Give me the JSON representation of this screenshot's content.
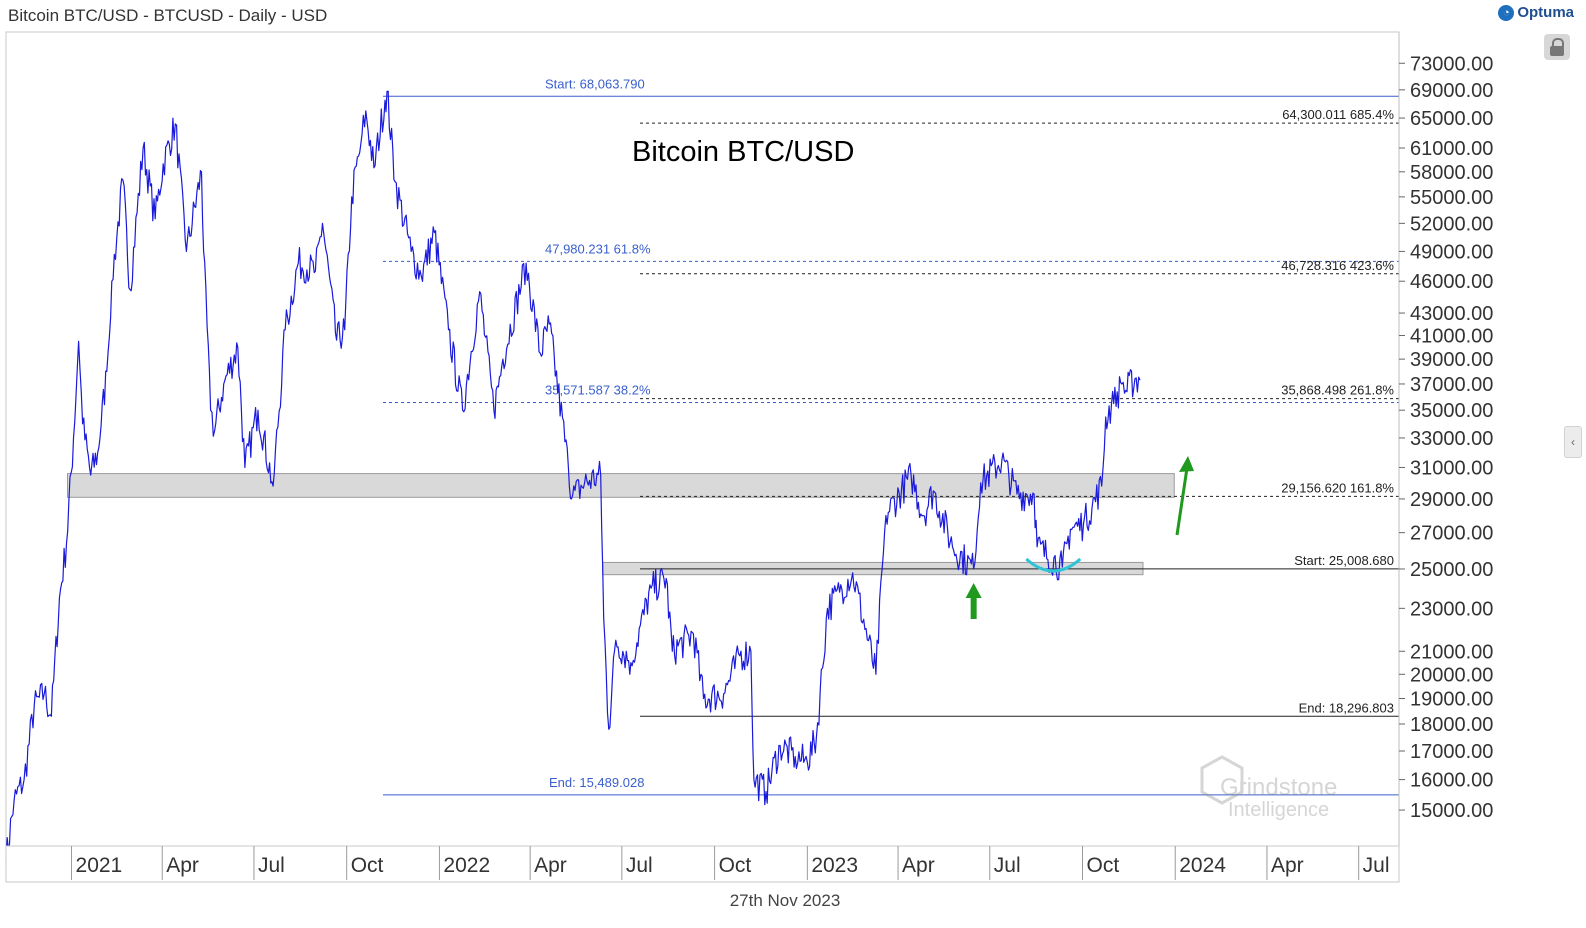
{
  "header": {
    "title": "Bitcoin BTC/USD - BTCUSD - Daily - USD",
    "brand": "Optuma"
  },
  "footer": {
    "date": "27th Nov 2023"
  },
  "watermark": {
    "line1": "Grindstone",
    "line2": "Intelligence"
  },
  "colors": {
    "price": "#1a1adb",
    "fib_left": "#3a5fcd",
    "fib_right": "#222222",
    "zone_fill": "#d9d9d9",
    "cup": "#2ec4d8",
    "arrow": "#1f9a1f"
  },
  "chart_data": {
    "type": "line",
    "title": "Bitcoin BTC/USD",
    "xlabel": "",
    "ylabel": "USD",
    "scale": "log",
    "ylim": [
      13900,
      78000
    ],
    "xlim": [
      "2020-10-28",
      "2024-08-10"
    ],
    "x_ticks": [
      {
        "date": "2021-01-01",
        "label": "2021"
      },
      {
        "date": "2021-04-01",
        "label": "Apr"
      },
      {
        "date": "2021-07-01",
        "label": "Jul"
      },
      {
        "date": "2021-10-01",
        "label": "Oct"
      },
      {
        "date": "2022-01-01",
        "label": "2022"
      },
      {
        "date": "2022-04-01",
        "label": "Apr"
      },
      {
        "date": "2022-07-01",
        "label": "Jul"
      },
      {
        "date": "2022-10-01",
        "label": "Oct"
      },
      {
        "date": "2023-01-01",
        "label": "2023"
      },
      {
        "date": "2023-04-01",
        "label": "Apr"
      },
      {
        "date": "2023-07-01",
        "label": "Jul"
      },
      {
        "date": "2023-10-01",
        "label": "Oct"
      },
      {
        "date": "2024-01-01",
        "label": "2024"
      },
      {
        "date": "2024-04-01",
        "label": "Apr"
      },
      {
        "date": "2024-07-01",
        "label": "Jul"
      }
    ],
    "y_ticks": [
      15000,
      16000,
      17000,
      18000,
      19000,
      20000,
      21000,
      23000,
      25000,
      27000,
      29000,
      31000,
      33000,
      35000,
      37000,
      39000,
      41000,
      43000,
      46000,
      49000,
      52000,
      55000,
      58000,
      61000,
      65000,
      69000,
      73000
    ],
    "y_tick_labels": [
      "15000.00",
      "16000.00",
      "17000.00",
      "18000.00",
      "19000.00",
      "20000.00",
      "21000.00",
      "23000.00",
      "25000.00",
      "27000.00",
      "29000.00",
      "31000.00",
      "33000.00",
      "35000.00",
      "37000.00",
      "39000.00",
      "41000.00",
      "43000.00",
      "46000.00",
      "49000.00",
      "52000.00",
      "55000.00",
      "58000.00",
      "61000.00",
      "65000.00",
      "69000.00",
      "73000.00"
    ],
    "series": [
      {
        "points": [
          [
            "2020-10-28",
            13500
          ],
          [
            "2020-11-05",
            15300
          ],
          [
            "2020-11-15",
            16000
          ],
          [
            "2020-11-25",
            18700
          ],
          [
            "2020-12-05",
            19200
          ],
          [
            "2020-12-12",
            18300
          ],
          [
            "2020-12-20",
            23500
          ],
          [
            "2020-12-27",
            26400
          ],
          [
            "2021-01-03",
            33000
          ],
          [
            "2021-01-08",
            40500
          ],
          [
            "2021-01-12",
            34000
          ],
          [
            "2021-01-20",
            30500
          ],
          [
            "2021-01-27",
            32000
          ],
          [
            "2021-02-05",
            38000
          ],
          [
            "2021-02-10",
            46000
          ],
          [
            "2021-02-21",
            57000
          ],
          [
            "2021-02-28",
            45200
          ],
          [
            "2021-03-13",
            61000
          ],
          [
            "2021-03-25",
            52500
          ],
          [
            "2021-04-02",
            59000
          ],
          [
            "2021-04-14",
            64200
          ],
          [
            "2021-04-25",
            49000
          ],
          [
            "2021-05-10",
            58000
          ],
          [
            "2021-05-12",
            49000
          ],
          [
            "2021-05-19",
            35000
          ],
          [
            "2021-05-23",
            33500
          ],
          [
            "2021-06-01",
            37000
          ],
          [
            "2021-06-15",
            40000
          ],
          [
            "2021-06-22",
            31000
          ],
          [
            "2021-07-05",
            35000
          ],
          [
            "2021-07-20",
            29800
          ],
          [
            "2021-08-01",
            41500
          ],
          [
            "2021-08-14",
            47800
          ],
          [
            "2021-08-31",
            47000
          ],
          [
            "2021-09-07",
            52000
          ],
          [
            "2021-09-21",
            40600
          ],
          [
            "2021-09-29",
            41500
          ],
          [
            "2021-10-06",
            55000
          ],
          [
            "2021-10-15",
            61500
          ],
          [
            "2021-10-20",
            66000
          ],
          [
            "2021-10-28",
            58500
          ],
          [
            "2021-11-08",
            67500
          ],
          [
            "2021-11-10",
            68790
          ],
          [
            "2021-11-18",
            56800
          ],
          [
            "2021-12-04",
            49000
          ],
          [
            "2021-12-14",
            46500
          ],
          [
            "2021-12-27",
            51000
          ],
          [
            "2022-01-10",
            41500
          ],
          [
            "2022-01-24",
            35000
          ],
          [
            "2022-02-10",
            45000
          ],
          [
            "2022-02-24",
            35000
          ],
          [
            "2022-03-05",
            39000
          ],
          [
            "2022-03-28",
            47800
          ],
          [
            "2022-04-11",
            39500
          ],
          [
            "2022-04-20",
            42000
          ],
          [
            "2022-05-09",
            31000
          ],
          [
            "2022-05-12",
            29000
          ],
          [
            "2022-05-25",
            30000
          ],
          [
            "2022-06-10",
            30500
          ],
          [
            "2022-06-13",
            22500
          ],
          [
            "2022-06-18",
            17800
          ],
          [
            "2022-06-25",
            21500
          ],
          [
            "2022-07-10",
            20500
          ],
          [
            "2022-07-30",
            24000
          ],
          [
            "2022-08-14",
            24500
          ],
          [
            "2022-08-20",
            21000
          ],
          [
            "2022-09-10",
            21800
          ],
          [
            "2022-09-20",
            19000
          ],
          [
            "2022-10-10",
            19200
          ],
          [
            "2022-10-26",
            20800
          ],
          [
            "2022-11-06",
            21000
          ],
          [
            "2022-11-09",
            16000
          ],
          [
            "2022-11-21",
            15600
          ],
          [
            "2022-12-05",
            17200
          ],
          [
            "2022-12-20",
            16800
          ],
          [
            "2023-01-01",
            16600
          ],
          [
            "2023-01-10",
            17500
          ],
          [
            "2023-01-21",
            23000
          ],
          [
            "2023-02-02",
            23800
          ],
          [
            "2023-02-15",
            24800
          ],
          [
            "2023-03-10",
            20000
          ],
          [
            "2023-03-20",
            28000
          ],
          [
            "2023-04-14",
            30500
          ],
          [
            "2023-04-26",
            28000
          ],
          [
            "2023-05-06",
            29500
          ],
          [
            "2023-05-25",
            26200
          ],
          [
            "2023-06-15",
            25000
          ],
          [
            "2023-06-22",
            30000
          ],
          [
            "2023-07-13",
            31500
          ],
          [
            "2023-07-28",
            29300
          ],
          [
            "2023-08-14",
            29300
          ],
          [
            "2023-08-17",
            26200
          ],
          [
            "2023-09-11",
            25100
          ],
          [
            "2023-09-19",
            27200
          ],
          [
            "2023-10-02",
            27500
          ],
          [
            "2023-10-20",
            29800
          ],
          [
            "2023-10-24",
            34500
          ],
          [
            "2023-11-01",
            35500
          ],
          [
            "2023-11-09",
            37000
          ],
          [
            "2023-11-13",
            36500
          ],
          [
            "2023-11-22",
            37400
          ],
          [
            "2023-11-27",
            37300
          ]
        ]
      }
    ],
    "fib_levels_left": [
      {
        "price": 68063.79,
        "label": "Start:",
        "value": "68,063.790",
        "pct": ""
      },
      {
        "price": 47980.231,
        "label": "",
        "value": "47,980.231",
        "pct": "61.8%"
      },
      {
        "price": 35571.587,
        "label": "",
        "value": "35,571.587",
        "pct": "38.2%"
      },
      {
        "price": 15489.028,
        "label": "End:",
        "value": "15,489.028",
        "pct": ""
      }
    ],
    "fib_levels_right": [
      {
        "price": 64300.011,
        "label": "",
        "value": "64,300.011",
        "pct": "685.4%"
      },
      {
        "price": 46728.316,
        "label": "",
        "value": "46,728.316",
        "pct": "423.6%"
      },
      {
        "price": 35868.498,
        "label": "",
        "value": "35,868.498",
        "pct": "261.8%"
      },
      {
        "price": 29156.62,
        "label": "",
        "value": "29,156.620",
        "pct": "161.8%"
      },
      {
        "price": 25008.68,
        "label": "Start:",
        "value": "25,008.680",
        "pct": ""
      },
      {
        "price": 18296.803,
        "label": "End:",
        "value": "18,296.803",
        "pct": ""
      }
    ],
    "zones": [
      {
        "from": "2020-12-28",
        "to": "2023-12-31",
        "low": 29100,
        "high": 30600
      },
      {
        "from": "2022-06-12",
        "to": "2023-11-30",
        "low": 24700,
        "high": 25350
      }
    ],
    "annotations": [
      "up-arrow 2023-06-15",
      "up-arrow 2023-11-20",
      "cup 2023-09-05"
    ]
  }
}
